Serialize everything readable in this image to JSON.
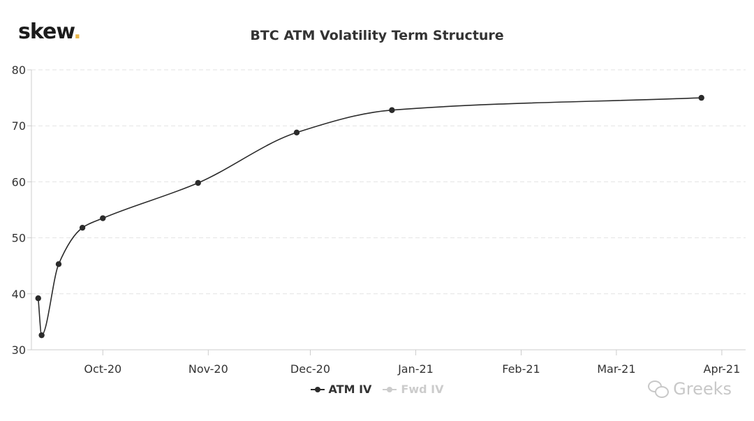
{
  "brand": {
    "logo_text": "skew",
    "logo_dot": ".",
    "accent": "#e8b64a"
  },
  "watermark": {
    "text": "Greeks"
  },
  "chart_data": {
    "type": "line",
    "title": "BTC ATM Volatility Term Structure",
    "xlabel": "",
    "ylabel": "",
    "ylim": [
      30,
      80
    ],
    "yticks": [
      30,
      40,
      50,
      60,
      70,
      80
    ],
    "xlim": [
      "2020-09-10",
      "2021-04-08"
    ],
    "xticks": [
      {
        "date": "2020-10-01",
        "label": "Oct-20"
      },
      {
        "date": "2020-11-01",
        "label": "Nov-20"
      },
      {
        "date": "2020-12-01",
        "label": "Dec-20"
      },
      {
        "date": "2021-01-01",
        "label": "Jan-21"
      },
      {
        "date": "2021-02-01",
        "label": "Feb-21"
      },
      {
        "date": "2021-03-01",
        "label": "Mar-21"
      },
      {
        "date": "2021-04-01",
        "label": "Apr-21"
      }
    ],
    "grid": true,
    "legend_position": "bottom-center",
    "series": [
      {
        "name": "ATM IV",
        "color": "#2b2b2b",
        "visible": true,
        "points": [
          {
            "x": "2020-09-12",
            "y": 39.2
          },
          {
            "x": "2020-09-13",
            "y": 32.6
          },
          {
            "x": "2020-09-18",
            "y": 45.3
          },
          {
            "x": "2020-09-25",
            "y": 51.8
          },
          {
            "x": "2020-10-01",
            "y": 53.5
          },
          {
            "x": "2020-10-29",
            "y": 59.8
          },
          {
            "x": "2020-11-27",
            "y": 68.8
          },
          {
            "x": "2020-12-25",
            "y": 72.8
          },
          {
            "x": "2021-03-26",
            "y": 75.0
          }
        ]
      },
      {
        "name": "Fwd IV",
        "color": "#cccccc",
        "visible": false,
        "points": []
      }
    ]
  }
}
